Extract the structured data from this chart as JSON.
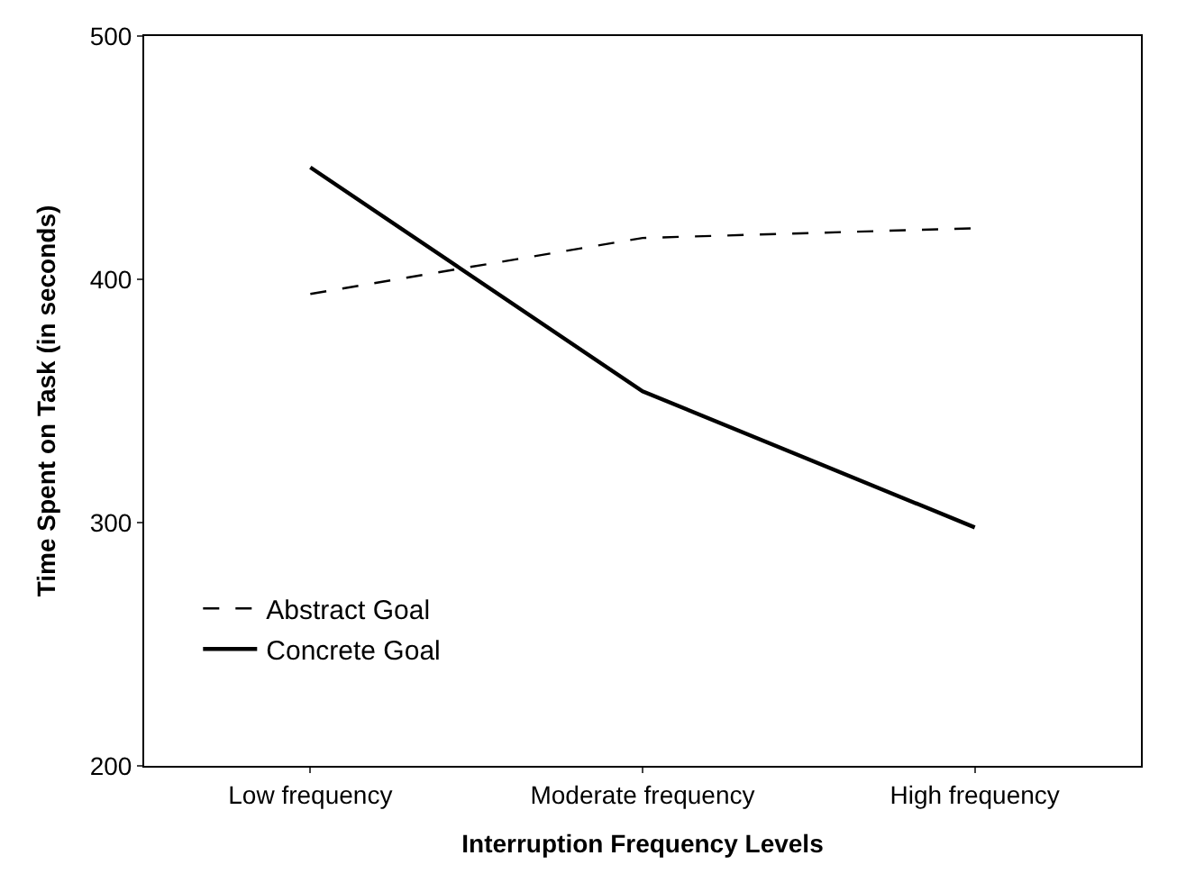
{
  "chart_data": {
    "type": "line",
    "xlabel": "Interruption Frequency Levels",
    "ylabel": "Time Spent on Task (in seconds)",
    "categories": [
      "Low frequency",
      "Moderate frequency",
      "High frequency"
    ],
    "series": [
      {
        "name": "Abstract Goal",
        "color": "#000000",
        "values": [
          394,
          417,
          421
        ],
        "line_style": "dashed"
      },
      {
        "name": "Concrete Goal",
        "color": "#000000",
        "values": [
          446,
          354,
          298
        ],
        "line_style": "solid"
      }
    ],
    "ylim": [
      200,
      500
    ],
    "yticks": [
      200,
      300,
      400,
      500
    ],
    "legend": "bottom left",
    "marker": "none"
  }
}
